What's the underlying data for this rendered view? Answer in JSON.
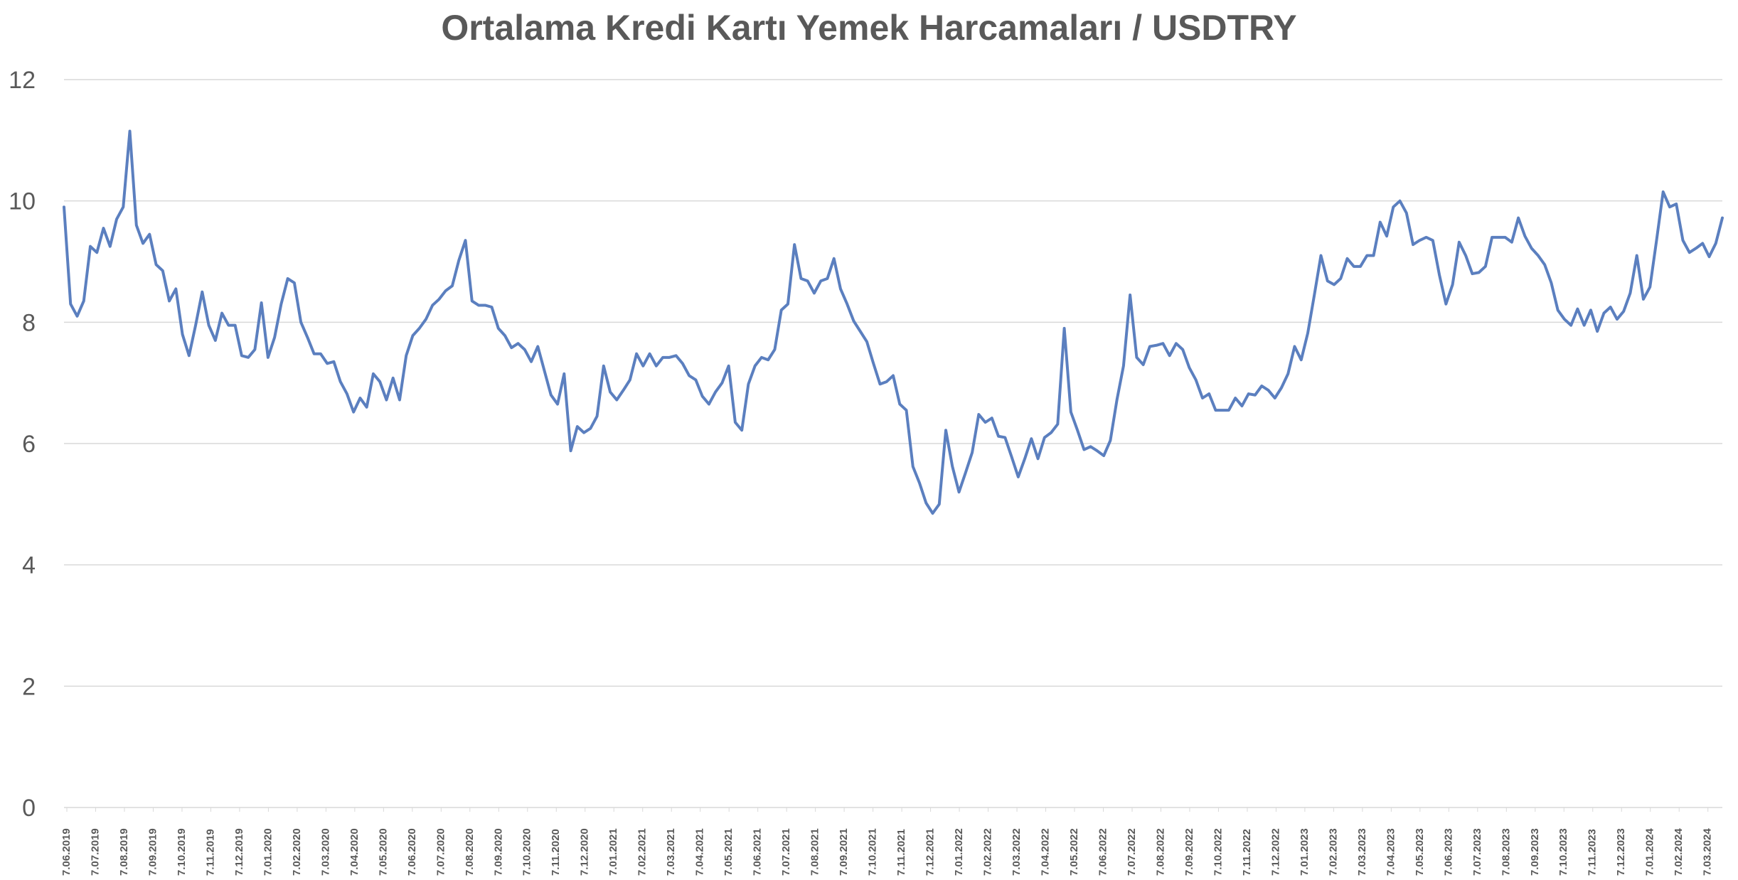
{
  "colors": {
    "series": "#5b7fbf",
    "grid": "#d9d9d9",
    "text": "#595959"
  },
  "chart_data": {
    "type": "line",
    "title": "Ortalama Kredi Kartı Yemek Harcamaları / USDTRY",
    "xlabel": "",
    "ylabel": "",
    "ylim": [
      0,
      12
    ],
    "yticks": [
      0,
      2,
      4,
      6,
      8,
      10,
      12
    ],
    "grid": true,
    "legend": "none",
    "x_tick_labels": [
      "7.06.2019",
      "7.07.2019",
      "7.08.2019",
      "7.09.2019",
      "7.10.2019",
      "7.11.2019",
      "7.12.2019",
      "7.01.2020",
      "7.02.2020",
      "7.03.2020",
      "7.04.2020",
      "7.05.2020",
      "7.06.2020",
      "7.07.2020",
      "7.08.2020",
      "7.09.2020",
      "7.10.2020",
      "7.11.2020",
      "7.12.2020",
      "7.01.2021",
      "7.02.2021",
      "7.03.2021",
      "7.04.2021",
      "7.05.2021",
      "7.06.2021",
      "7.07.2021",
      "7.08.2021",
      "7.09.2021",
      "7.10.2021",
      "7.11.2021",
      "7.12.2021",
      "7.01.2022",
      "7.02.2022",
      "7.03.2022",
      "7.04.2022",
      "7.05.2022",
      "7.06.2022",
      "7.07.2022",
      "7.08.2022",
      "7.09.2022",
      "7.10.2022",
      "7.11.2022",
      "7.12.2022",
      "7.01.2023",
      "7.02.2023",
      "7.03.2023",
      "7.04.2023",
      "7.05.2023",
      "7.06.2023",
      "7.07.2023",
      "7.08.2023",
      "7.09.2023",
      "7.10.2023",
      "7.11.2023",
      "7.12.2023",
      "7.01.2024",
      "7.02.2024",
      "7.03.2024"
    ],
    "series": [
      {
        "values": [
          9.9,
          8.3,
          8.1,
          8.35,
          9.25,
          9.15,
          9.55,
          9.25,
          9.7,
          9.9,
          11.15,
          9.6,
          9.3,
          9.45,
          8.95,
          8.85,
          8.35,
          8.55,
          7.8,
          7.45,
          7.95,
          8.5,
          7.95,
          7.7,
          8.15,
          7.95,
          7.95,
          7.45,
          7.42,
          7.55,
          8.32,
          7.42,
          7.75,
          8.3,
          8.72,
          8.65,
          8.0,
          7.75,
          7.48,
          7.48,
          7.32,
          7.35,
          7.02,
          6.82,
          6.52,
          6.75,
          6.6,
          7.15,
          7.02,
          6.72,
          7.08,
          6.72,
          7.45,
          7.78,
          7.9,
          8.05,
          8.28,
          8.38,
          8.52,
          8.6,
          9.02,
          9.35,
          8.35,
          8.28,
          8.28,
          8.25,
          7.9,
          7.78,
          7.58,
          7.65,
          7.55,
          7.35,
          7.6,
          7.2,
          6.8,
          6.65,
          7.15,
          5.88,
          6.28,
          6.18,
          6.25,
          6.45,
          7.28,
          6.85,
          6.72,
          6.88,
          7.05,
          7.48,
          7.28,
          7.48,
          7.28,
          7.42,
          7.42,
          7.45,
          7.32,
          7.12,
          7.05,
          6.78,
          6.65,
          6.85,
          7.0,
          7.28,
          6.35,
          6.22,
          6.98,
          7.28,
          7.42,
          7.38,
          7.55,
          8.2,
          8.3,
          9.28,
          8.72,
          8.68,
          8.48,
          8.68,
          8.72,
          9.05,
          8.55,
          8.3,
          8.02,
          7.85,
          7.68,
          7.32,
          6.98,
          7.02,
          7.12,
          6.65,
          6.55,
          5.62,
          5.35,
          5.02,
          4.85,
          5.0,
          6.22,
          5.62,
          5.2,
          5.52,
          5.85,
          6.48,
          6.35,
          6.42,
          6.12,
          6.1,
          5.78,
          5.45,
          5.75,
          6.08,
          5.75,
          6.1,
          6.18,
          6.32,
          7.9,
          6.52,
          6.22,
          5.9,
          5.95,
          5.88,
          5.8,
          6.05,
          6.72,
          7.28,
          8.45,
          7.42,
          7.3,
          7.6,
          7.62,
          7.65,
          7.45,
          7.65,
          7.55,
          7.25,
          7.05,
          6.75,
          6.82,
          6.55,
          6.55,
          6.55,
          6.75,
          6.62,
          6.82,
          6.8,
          6.95,
          6.88,
          6.75,
          6.92,
          7.15,
          7.6,
          7.38,
          7.82,
          8.45,
          9.1,
          8.68,
          8.62,
          8.72,
          9.05,
          8.92,
          8.92,
          9.1,
          9.1,
          9.65,
          9.42,
          9.9,
          10.0,
          9.8,
          9.28,
          9.35,
          9.4,
          9.35,
          8.78,
          8.3,
          8.62,
          9.32,
          9.1,
          8.8,
          8.82,
          8.92,
          9.4,
          9.4,
          9.4,
          9.32,
          9.72,
          9.42,
          9.22,
          9.1,
          8.95,
          8.65,
          8.2,
          8.05,
          7.95,
          8.22,
          7.95,
          8.2,
          7.85,
          8.15,
          8.25,
          8.05,
          8.18,
          8.48,
          9.1,
          8.38,
          8.58,
          9.35,
          10.15,
          9.9,
          9.95,
          9.35,
          9.15,
          9.22,
          9.3,
          9.08,
          9.3,
          9.72
        ]
      }
    ]
  }
}
